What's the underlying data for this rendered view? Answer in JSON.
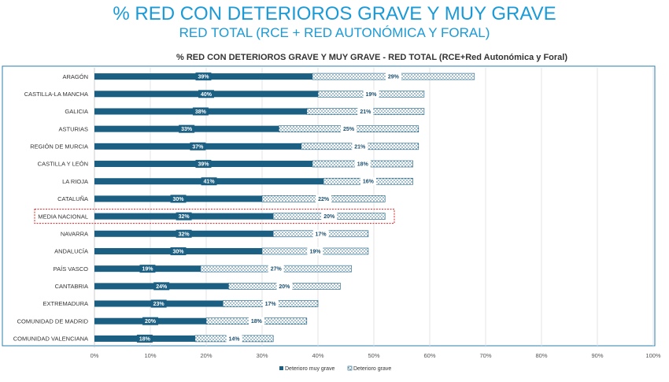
{
  "header": {
    "title": "% RED CON DETERIOROS GRAVE Y MUY GRAVE",
    "subtitle": "RED TOTAL (RCE + RED AUTONÓMICA Y FORAL)"
  },
  "chart_data": {
    "type": "bar",
    "orientation": "horizontal",
    "stacked": true,
    "title": "% RED CON DETERIOROS GRAVE Y MUY GRAVE  - RED TOTAL (RCE+Red Autonómica y Foral)",
    "categories": [
      "ARAGÓN",
      "CASTILLA-LA MANCHA",
      "GALICIA",
      "ASTURIAS",
      "REGIÓN DE MURCIA",
      "CASTILLA Y LEÓN",
      "LA RIOJA",
      "CATALUÑA",
      "MEDIA NACIONAL",
      "NAVARRA",
      "ANDALUCÍA",
      "PAÍS VASCO",
      "CANTABRIA",
      "EXTREMADURA",
      "COMUNIDAD DE MADRID",
      "COMUNIDAD VALENCIANA"
    ],
    "series": [
      {
        "name": "Deterioro muy grave",
        "values": [
          39,
          40,
          38,
          33,
          37,
          39,
          41,
          30,
          32,
          32,
          30,
          19,
          24,
          23,
          20,
          18
        ],
        "labels": [
          "39%",
          "40%",
          "38%",
          "33%",
          "37%",
          "39%",
          "41%",
          "30%",
          "32%",
          "32%",
          "30%",
          "19%",
          "24%",
          "23%",
          "20%",
          "18%"
        ]
      },
      {
        "name": "Deterioro grave",
        "values": [
          29,
          19,
          21,
          25,
          21,
          18,
          16,
          22,
          20,
          17,
          19,
          27,
          20,
          17,
          18,
          14
        ],
        "labels": [
          "29%",
          "19%",
          "21%",
          "25%",
          "21%",
          "18%",
          "16%",
          "22%",
          "20%",
          "17%",
          "19%",
          "27%",
          "20%",
          "17%",
          "18%",
          "14%"
        ]
      }
    ],
    "highlighted_category": "MEDIA NACIONAL",
    "xlim": [
      0,
      100
    ],
    "x_ticks": [
      "0%",
      "10%",
      "20%",
      "30%",
      "40%",
      "50%",
      "60%",
      "70%",
      "80%",
      "90%",
      "100%"
    ],
    "grid": true,
    "legend": "bottom",
    "colors": {
      "muy_grave": "#1b5f82",
      "grave": "#ffffff",
      "grave_pattern": "#1b5f82",
      "frame": "#2a7faf",
      "highlight_box": "#e02020",
      "grid": "#dddddd"
    }
  }
}
